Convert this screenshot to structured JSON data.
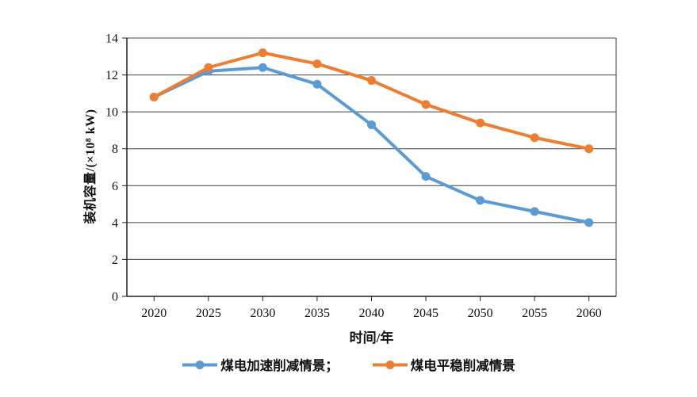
{
  "colors": {
    "axis": "#1f1f1f",
    "grid": "#3f3f3f",
    "text": "#111111",
    "background": "#ffffff"
  },
  "chart_data": {
    "type": "line",
    "title": "",
    "xlabel": "时间/年",
    "ylabel": "装机容量/(×10⁸ kW)",
    "categories": [
      "2020",
      "2025",
      "2030",
      "2035",
      "2040",
      "2045",
      "2050",
      "2055",
      "2060"
    ],
    "ylim": [
      0,
      14
    ],
    "yticks": [
      0,
      2,
      4,
      6,
      8,
      10,
      12,
      14
    ],
    "grid": "horizontal",
    "legend_position": "bottom-center",
    "series": [
      {
        "id": "accelerated",
        "name": "煤电加速削减情景",
        "legend_label": "煤电加速削减情景；",
        "color": "#5B9BD5",
        "values": [
          10.8,
          12.2,
          12.4,
          11.5,
          9.3,
          6.5,
          5.2,
          4.6,
          4.0
        ]
      },
      {
        "id": "steady",
        "name": "煤电平稳削减情景",
        "legend_label": "煤电平稳削减情景",
        "color": "#ED7D31",
        "values": [
          10.8,
          12.4,
          13.2,
          12.6,
          11.7,
          10.4,
          9.4,
          8.6,
          8.0
        ]
      }
    ]
  }
}
